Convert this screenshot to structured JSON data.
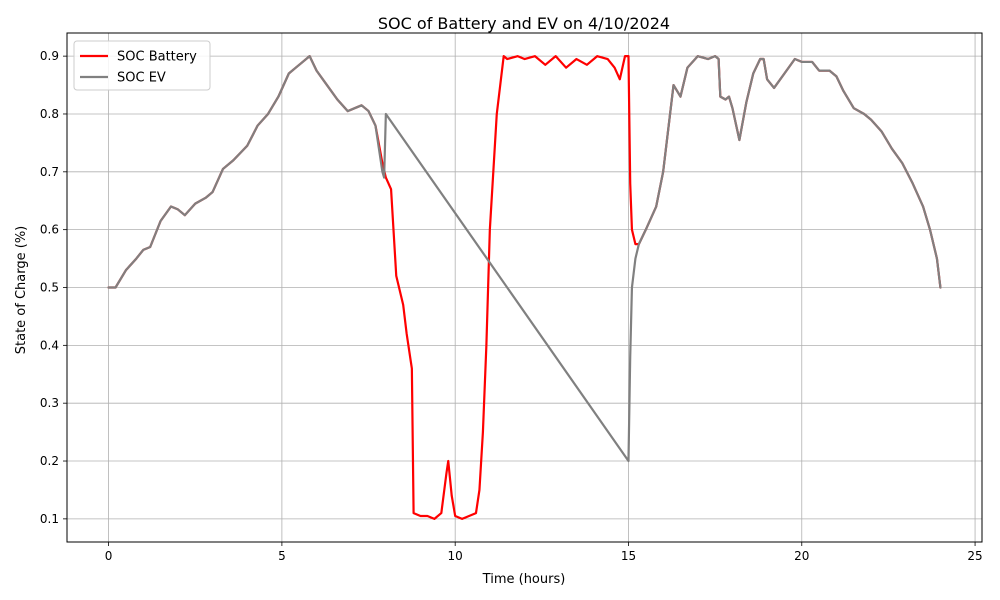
{
  "chart_data": {
    "type": "line",
    "title": "SOC of Battery and EV on 4/10/2024",
    "xlabel": "Time (hours)",
    "ylabel": "State of Charge (%)",
    "xlim": [
      -1.2,
      25.2
    ],
    "ylim": [
      0.06,
      0.94
    ],
    "xticks": [
      0,
      5,
      10,
      15,
      20,
      25
    ],
    "yticks": [
      0.1,
      0.2,
      0.3,
      0.4,
      0.5,
      0.6,
      0.7,
      0.8,
      0.9
    ],
    "grid": true,
    "legend_position": "top-left",
    "series": [
      {
        "name": "SOC Battery",
        "color": "#ff0000",
        "x": [
          0,
          0.2,
          0.5,
          0.8,
          1.0,
          1.2,
          1.5,
          1.8,
          2.0,
          2.2,
          2.5,
          2.8,
          3.0,
          3.3,
          3.6,
          4.0,
          4.3,
          4.6,
          4.9,
          5.2,
          5.4,
          5.6,
          5.8,
          6.0,
          6.3,
          6.6,
          6.9,
          7.1,
          7.3,
          7.5,
          7.7,
          7.9,
          8.0,
          8.15,
          8.3,
          8.5,
          8.6,
          8.7,
          8.75,
          8.8,
          9.0,
          9.2,
          9.4,
          9.6,
          9.75,
          9.8,
          9.9,
          10.0,
          10.2,
          10.4,
          10.6,
          10.7,
          10.8,
          10.9,
          11.0,
          11.2,
          11.4,
          11.5,
          11.8,
          12.0,
          12.3,
          12.6,
          12.9,
          13.2,
          13.5,
          13.8,
          14.1,
          14.4,
          14.6,
          14.75,
          14.9,
          15.0,
          15.05,
          15.1,
          15.2,
          15.3,
          15.5,
          15.8,
          16.0,
          16.2,
          16.3,
          16.5,
          16.7,
          17.0,
          17.3,
          17.5,
          17.6,
          17.65,
          17.8,
          17.9,
          18.0,
          18.2,
          18.4,
          18.6,
          18.8,
          18.9,
          19.0,
          19.2,
          19.5,
          19.8,
          20.0,
          20.3,
          20.5,
          20.8,
          21.0,
          21.2,
          21.5,
          21.8,
          22.0,
          22.3,
          22.6,
          22.9,
          23.2,
          23.5,
          23.7,
          23.9,
          24.0
        ],
        "y": [
          0.5,
          0.5,
          0.53,
          0.55,
          0.565,
          0.57,
          0.615,
          0.64,
          0.635,
          0.625,
          0.645,
          0.655,
          0.665,
          0.705,
          0.72,
          0.745,
          0.78,
          0.8,
          0.83,
          0.87,
          0.88,
          0.89,
          0.9,
          0.875,
          0.85,
          0.825,
          0.805,
          0.81,
          0.815,
          0.805,
          0.78,
          0.715,
          0.69,
          0.67,
          0.52,
          0.47,
          0.42,
          0.38,
          0.36,
          0.11,
          0.105,
          0.105,
          0.1,
          0.11,
          0.18,
          0.2,
          0.14,
          0.105,
          0.1,
          0.105,
          0.11,
          0.15,
          0.25,
          0.4,
          0.6,
          0.8,
          0.9,
          0.895,
          0.9,
          0.895,
          0.9,
          0.885,
          0.9,
          0.88,
          0.895,
          0.885,
          0.9,
          0.895,
          0.88,
          0.86,
          0.9,
          0.9,
          0.68,
          0.6,
          0.575,
          0.575,
          0.6,
          0.64,
          0.7,
          0.8,
          0.85,
          0.83,
          0.88,
          0.9,
          0.895,
          0.9,
          0.895,
          0.83,
          0.825,
          0.83,
          0.81,
          0.755,
          0.82,
          0.87,
          0.895,
          0.895,
          0.86,
          0.845,
          0.87,
          0.895,
          0.89,
          0.89,
          0.875,
          0.875,
          0.865,
          0.84,
          0.81,
          0.8,
          0.79,
          0.77,
          0.74,
          0.715,
          0.68,
          0.64,
          0.6,
          0.55,
          0.5
        ]
      },
      {
        "name": "SOC EV",
        "color": "#808080",
        "x": [
          0,
          0.2,
          0.5,
          0.8,
          1.0,
          1.2,
          1.5,
          1.8,
          2.0,
          2.2,
          2.5,
          2.8,
          3.0,
          3.3,
          3.6,
          4.0,
          4.3,
          4.6,
          4.9,
          5.2,
          5.4,
          5.6,
          5.8,
          6.0,
          6.3,
          6.6,
          6.9,
          7.1,
          7.3,
          7.5,
          7.7,
          7.8,
          7.9,
          7.95,
          8.0,
          15.0,
          15.05,
          15.1,
          15.2,
          15.3,
          15.5,
          15.8,
          16.0,
          16.2,
          16.3,
          16.5,
          16.7,
          17.0,
          17.3,
          17.5,
          17.6,
          17.65,
          17.8,
          17.9,
          18.0,
          18.2,
          18.4,
          18.6,
          18.8,
          18.9,
          19.0,
          19.2,
          19.5,
          19.8,
          20.0,
          20.3,
          20.5,
          20.8,
          21.0,
          21.2,
          21.5,
          21.8,
          22.0,
          22.3,
          22.6,
          22.9,
          23.2,
          23.5,
          23.7,
          23.9,
          24.0
        ],
        "y": [
          0.5,
          0.5,
          0.53,
          0.55,
          0.565,
          0.57,
          0.615,
          0.64,
          0.635,
          0.625,
          0.645,
          0.655,
          0.665,
          0.705,
          0.72,
          0.745,
          0.78,
          0.8,
          0.83,
          0.87,
          0.88,
          0.89,
          0.9,
          0.875,
          0.85,
          0.825,
          0.805,
          0.81,
          0.815,
          0.805,
          0.78,
          0.74,
          0.7,
          0.69,
          0.8,
          0.2,
          0.38,
          0.5,
          0.55,
          0.575,
          0.6,
          0.64,
          0.7,
          0.8,
          0.85,
          0.83,
          0.88,
          0.9,
          0.895,
          0.9,
          0.895,
          0.83,
          0.825,
          0.83,
          0.81,
          0.755,
          0.82,
          0.87,
          0.895,
          0.895,
          0.86,
          0.845,
          0.87,
          0.895,
          0.89,
          0.89,
          0.875,
          0.875,
          0.865,
          0.84,
          0.81,
          0.8,
          0.79,
          0.77,
          0.74,
          0.715,
          0.68,
          0.64,
          0.6,
          0.55,
          0.5
        ]
      }
    ]
  }
}
